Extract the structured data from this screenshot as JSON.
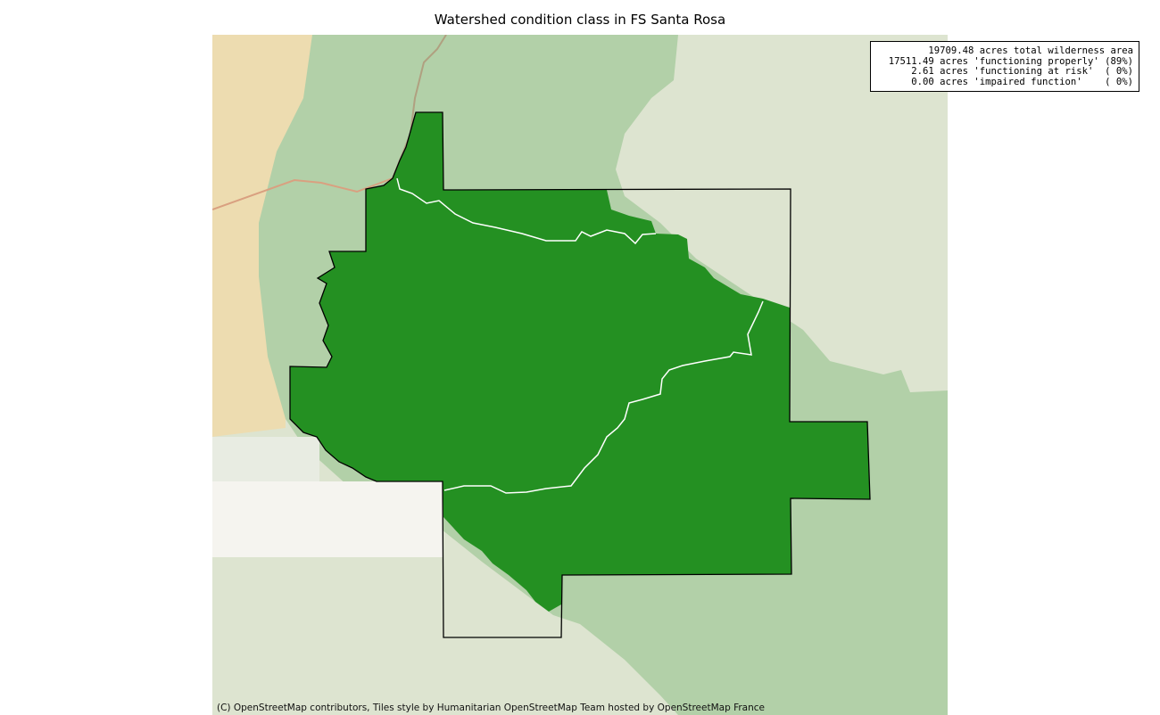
{
  "title": "Watershed condition class in FS Santa Rosa",
  "legend": {
    "lines": [
      "19709.48 acres total wilderness area",
      "17511.49 acres 'functioning properly' (89%)",
      "2.61 acres 'functioning at risk'  ( 0%)",
      "0.00 acres 'impaired function'    ( 0%)"
    ]
  },
  "attribution": "(C) OpenStreetMap contributors, Tiles style by Humanitarian OpenStreetMap Team hosted by OpenStreetMap France",
  "colors": {
    "functioning_properly": "#249022",
    "boundary": "#000000",
    "watershed_lines": "#ffffff",
    "forest_land": "#b2d0a8",
    "base_land": "#dde4d0",
    "urban": "#eddcb0"
  }
}
